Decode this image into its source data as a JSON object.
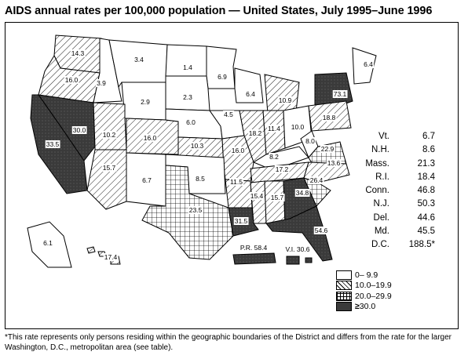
{
  "title": "AIDS annual rates per 100,000 population — United States, July 1995–June 1996",
  "colors": {
    "lowest": "#ffffff",
    "low": "#ffffff",
    "mid": "#ffffff",
    "high": "#333333",
    "line": "#000000"
  },
  "legend": [
    {
      "label": "0–  9.9",
      "fill": "none"
    },
    {
      "label": "10.0–19.9",
      "fill": "diag"
    },
    {
      "label": "20.0–29.9",
      "fill": "grid"
    },
    {
      "label": "30.0",
      "fill": "dark",
      "prefix": "≥"
    }
  ],
  "state_labels": [
    {
      "name": "WA",
      "value": "14.3"
    },
    {
      "name": "OR",
      "value": "16.0"
    },
    {
      "name": "ID",
      "value": "3.9"
    },
    {
      "name": "MT",
      "value": "3.4"
    },
    {
      "name": "ND",
      "value": "1.4"
    },
    {
      "name": "MN",
      "value": "6.9"
    },
    {
      "name": "SD",
      "value": "2.3"
    },
    {
      "name": "WY",
      "value": "2.9"
    },
    {
      "name": "WI",
      "value": "6.4"
    },
    {
      "name": "MI",
      "value": "10.9"
    },
    {
      "name": "NY",
      "value": "73.1"
    },
    {
      "name": "ME",
      "value": "6.4"
    },
    {
      "name": "NV",
      "value": "30.0"
    },
    {
      "name": "CA",
      "value": "33.5"
    },
    {
      "name": "UT",
      "value": "10.2"
    },
    {
      "name": "CO",
      "value": "16.0"
    },
    {
      "name": "NE",
      "value": "6.0"
    },
    {
      "name": "IA",
      "value": "4.5"
    },
    {
      "name": "IL",
      "value": "18.2"
    },
    {
      "name": "IN",
      "value": "11.4"
    },
    {
      "name": "OH",
      "value": "10.0"
    },
    {
      "name": "PA",
      "value": "18.8"
    },
    {
      "name": "KS",
      "value": "10.3"
    },
    {
      "name": "MO",
      "value": "16.0"
    },
    {
      "name": "KY",
      "value": "8.2"
    },
    {
      "name": "WV",
      "value": "8.0"
    },
    {
      "name": "VA",
      "value": "22.9"
    },
    {
      "name": "AZ",
      "value": "15.7"
    },
    {
      "name": "NM",
      "value": "6.7"
    },
    {
      "name": "OK",
      "value": "8.5"
    },
    {
      "name": "AR",
      "value": "11.5"
    },
    {
      "name": "TN",
      "value": "17.2"
    },
    {
      "name": "NC",
      "value": "13.6"
    },
    {
      "name": "TX",
      "value": "23.5"
    },
    {
      "name": "MS",
      "value": "15.4"
    },
    {
      "name": "AL",
      "value": "15.7"
    },
    {
      "name": "GA",
      "value": "34.8"
    },
    {
      "name": "SC",
      "value": "26.4"
    },
    {
      "name": "LA",
      "value": "31.5"
    },
    {
      "name": "FL",
      "value": "54.6"
    },
    {
      "name": "AK",
      "value": "6.1"
    },
    {
      "name": "HI",
      "value": "17.4"
    },
    {
      "name": "PR",
      "value": "P.R. 58.4"
    },
    {
      "name": "VI",
      "value": "V.I. 30.6"
    }
  ],
  "side_table": [
    {
      "state": "Vt.",
      "value": "6.7"
    },
    {
      "state": "N.H.",
      "value": "8.6"
    },
    {
      "state": "Mass.",
      "value": "21.3"
    },
    {
      "state": "R.I.",
      "value": "18.4"
    },
    {
      "state": "Conn.",
      "value": "46.8"
    },
    {
      "state": "N.J.",
      "value": "50.3"
    },
    {
      "state": "Del.",
      "value": "44.6"
    },
    {
      "state": "Md.",
      "value": "45.5"
    },
    {
      "state": "D.C.",
      "value": "188.5*"
    }
  ],
  "footnote": "*This rate represents only persons residing within the geographic boundaries of the District and differs from the rate for the larger Washington, D.C., metropolitan area (see table)."
}
